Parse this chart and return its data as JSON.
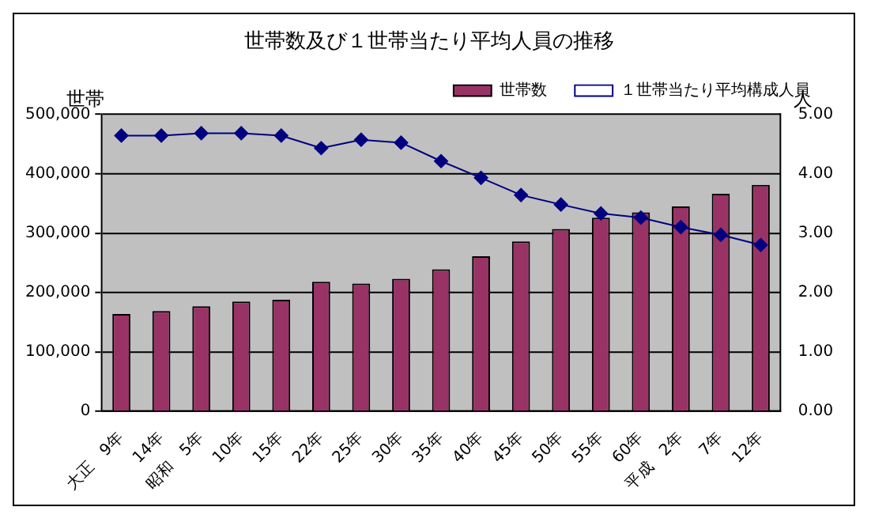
{
  "chart_data": {
    "type": "bar",
    "title": "世帯数及び１世帯当たり平均人員の推移",
    "ylabel": "世帯",
    "y2label": "人",
    "categories": [
      "大正　9年",
      "14年",
      "昭和　5年",
      "10年",
      "15年",
      "22年",
      "25年",
      "30年",
      "35年",
      "40年",
      "45年",
      "50年",
      "55年",
      "60年",
      "平成　2年",
      "7年",
      "12年"
    ],
    "series": [
      {
        "name": "世帯数",
        "color": "#993366",
        "values": [
          164000,
          169000,
          177000,
          185000,
          188000,
          218000,
          215000,
          223000,
          239000,
          261000,
          286000,
          307000,
          326000,
          335000,
          345000,
          366000,
          381000
        ]
      },
      {
        "name": "１世帯当たり平均構成人員",
        "type": "line",
        "axis": "y2",
        "color": "#000080",
        "marker": "diamond",
        "values": [
          4.64,
          4.64,
          4.68,
          4.68,
          4.64,
          4.43,
          4.57,
          4.52,
          4.21,
          3.93,
          3.64,
          3.48,
          3.33,
          3.26,
          3.1,
          2.97,
          2.8
        ]
      }
    ],
    "ylim": [
      0,
      500000
    ],
    "yticks": [
      {
        "value": 0,
        "label": "0"
      },
      {
        "value": 100000,
        "label": "100,000"
      },
      {
        "value": 200000,
        "label": "200,000"
      },
      {
        "value": 300000,
        "label": "300,000"
      },
      {
        "value": 400000,
        "label": "400,000"
      },
      {
        "value": 500000,
        "label": "500,000"
      }
    ],
    "y2lim": [
      0,
      5
    ],
    "y2ticks": [
      {
        "value": 0,
        "label": "0.00"
      },
      {
        "value": 1,
        "label": "1.00"
      },
      {
        "value": 2,
        "label": "2.00"
      },
      {
        "value": 3,
        "label": "3.00"
      },
      {
        "value": 4,
        "label": "4.00"
      },
      {
        "value": 5,
        "label": "5.00"
      }
    ],
    "grid": "y",
    "legend": "top right"
  }
}
